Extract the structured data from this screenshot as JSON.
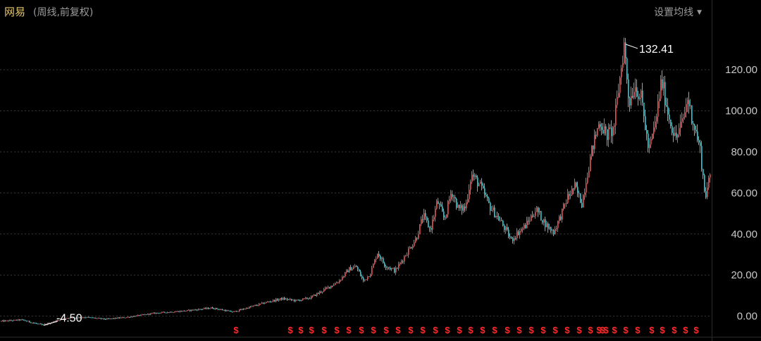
{
  "header": {
    "title": "网易",
    "subtitle": "(周线,前复权)",
    "ma_button": "设置均线"
  },
  "colors": {
    "background": "#000000",
    "up": "#ff4b4b",
    "down": "#19d7e0",
    "grid": "#3a3a3a",
    "title": "#e6c76a",
    "dividend_marker": "#ff2a2a"
  },
  "chart_data": {
    "type": "candlestick",
    "title": "网易",
    "subtitle": "(周线,前复权)",
    "yticks": [
      "0.00",
      "20.00",
      "40.00",
      "60.00",
      "80.00",
      "100.00",
      "120.00"
    ],
    "ylim": [
      -4.8,
      135
    ],
    "grid": "horizontal dashed",
    "high_annotation": "132.41",
    "low_annotation": "-4.50",
    "price_path": [
      [
        0,
        -2.5
      ],
      [
        30,
        -1.8
      ],
      [
        60,
        -4.5
      ],
      [
        90,
        -1.0
      ],
      [
        120,
        -0.5
      ],
      [
        150,
        -1.5
      ],
      [
        180,
        -0.5
      ],
      [
        220,
        1.5
      ],
      [
        260,
        2.5
      ],
      [
        300,
        4.0
      ],
      [
        330,
        2.0
      ],
      [
        350,
        4.0
      ],
      [
        380,
        7.0
      ],
      [
        400,
        8.5
      ],
      [
        420,
        7.5
      ],
      [
        440,
        9.0
      ],
      [
        460,
        13.0
      ],
      [
        480,
        17.0
      ],
      [
        495,
        23.0
      ],
      [
        505,
        24.0
      ],
      [
        515,
        17.0
      ],
      [
        525,
        21.0
      ],
      [
        535,
        31.0
      ],
      [
        545,
        25.0
      ],
      [
        560,
        22.0
      ],
      [
        575,
        30.0
      ],
      [
        590,
        38.0
      ],
      [
        600,
        49.0
      ],
      [
        610,
        42.0
      ],
      [
        620,
        56.0
      ],
      [
        630,
        47.0
      ],
      [
        640,
        61.0
      ],
      [
        650,
        52.0
      ],
      [
        660,
        53.0
      ],
      [
        668,
        69.0
      ],
      [
        680,
        64.0
      ],
      [
        695,
        53.0
      ],
      [
        710,
        46.0
      ],
      [
        725,
        37.0
      ],
      [
        735,
        41.0
      ],
      [
        745,
        44.0
      ],
      [
        760,
        52.0
      ],
      [
        775,
        44.0
      ],
      [
        785,
        41.0
      ],
      [
        795,
        49.0
      ],
      [
        805,
        58.0
      ],
      [
        815,
        63.0
      ],
      [
        825,
        55.0
      ],
      [
        833,
        70.0
      ],
      [
        840,
        82.0
      ],
      [
        850,
        95.0
      ],
      [
        860,
        88.0
      ],
      [
        870,
        91.0
      ],
      [
        878,
        113.0
      ],
      [
        885,
        132.41
      ],
      [
        892,
        104.0
      ],
      [
        900,
        113.0
      ],
      [
        910,
        105.0
      ],
      [
        920,
        80.0
      ],
      [
        930,
        95.0
      ],
      [
        938,
        115.0
      ],
      [
        948,
        98.0
      ],
      [
        958,
        86.0
      ],
      [
        968,
        95.0
      ],
      [
        975,
        106.0
      ],
      [
        985,
        92.0
      ],
      [
        993,
        81.0
      ],
      [
        1000,
        58.0
      ],
      [
        1007,
        68.0
      ]
    ],
    "dividend_marker_label": "$",
    "dividend_markers_x": [
      335,
      412,
      427,
      442,
      460,
      478,
      495,
      513,
      530,
      548,
      565,
      583,
      600,
      618,
      635,
      652,
      668,
      685,
      702,
      720,
      737,
      754,
      771,
      788,
      805,
      822,
      838,
      850,
      855,
      860,
      872,
      888,
      905,
      925,
      940,
      957,
      973,
      988
    ]
  }
}
